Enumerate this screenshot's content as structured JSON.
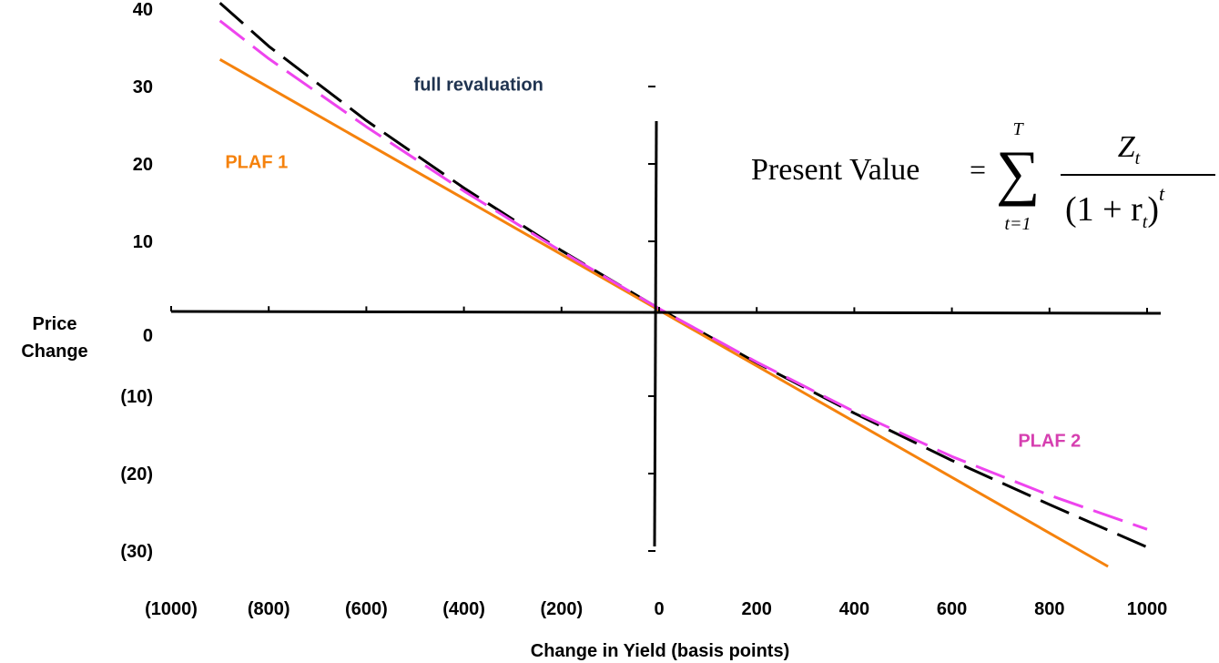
{
  "chart_data": {
    "type": "line",
    "title": "",
    "xlabel": "Change in Yield (basis points)",
    "ylabel": [
      "Price",
      "Change"
    ],
    "xlim": [
      -1000,
      1000
    ],
    "ylim": [
      -30,
      40
    ],
    "x_ticks": [
      {
        "value": -1000,
        "label": "(1000)"
      },
      {
        "value": -800,
        "label": "(800)"
      },
      {
        "value": -600,
        "label": "(600)"
      },
      {
        "value": -400,
        "label": "(400)"
      },
      {
        "value": -200,
        "label": "(200)"
      },
      {
        "value": 0,
        "label": "0"
      },
      {
        "value": 200,
        "label": "200"
      },
      {
        "value": 400,
        "label": "400"
      },
      {
        "value": 600,
        "label": "600"
      },
      {
        "value": 800,
        "label": "800"
      },
      {
        "value": 1000,
        "label": "1000"
      }
    ],
    "y_ticks": [
      {
        "value": 40,
        "label": "40"
      },
      {
        "value": 30,
        "label": "30"
      },
      {
        "value": 20,
        "label": "20"
      },
      {
        "value": 10,
        "label": "10"
      },
      {
        "value": 0,
        "label": "0"
      },
      {
        "value": -10,
        "label": "(10)"
      },
      {
        "value": -20,
        "label": "(20)"
      },
      {
        "value": -30,
        "label": "(30)"
      }
    ],
    "series": [
      {
        "name": "full revaluation",
        "color": "#000000",
        "style": "dashed",
        "x": [
          -900,
          -800,
          -600,
          -400,
          -200,
          0,
          200,
          400,
          600,
          800,
          1000
        ],
        "y": [
          40.8,
          35.2,
          25.6,
          16.9,
          8.8,
          1.3,
          -5.7,
          -12.2,
          -18.3,
          -24.0,
          -29.5
        ]
      },
      {
        "name": "PLAF 1",
        "color": "#f5820d",
        "style": "solid",
        "x": [
          -900,
          920
        ],
        "y": [
          33.5,
          -32.0
        ]
      },
      {
        "name": "PLAF 2",
        "color": "#ee44ee",
        "style": "dashed",
        "x": [
          -900,
          -800,
          -600,
          -400,
          -200,
          0,
          200,
          400,
          600,
          800,
          1000
        ],
        "y": [
          38.5,
          33.6,
          24.8,
          16.5,
          8.7,
          1.3,
          -5.6,
          -12.0,
          -17.8,
          -22.8,
          -27.2
        ]
      }
    ],
    "annotations": [
      {
        "text": "full revaluation",
        "color": "#1f3350",
        "x": -370,
        "y": 29.5
      },
      {
        "text": "PLAF 1",
        "color": "#f5820d",
        "x": -825,
        "y": 19.5
      },
      {
        "text": "PLAF 2",
        "color": "#d63fb0",
        "x": 800,
        "y": -16.5
      }
    ],
    "formula": {
      "lhs": "Present Value",
      "equals": "=",
      "sum_upper": "T",
      "sum_lower": "t=1",
      "numerator": "Z",
      "numerator_sub": "t",
      "denominator_open": "(1 + r",
      "denominator_sub": "t",
      "denominator_close": ")",
      "exponent": "t"
    }
  }
}
